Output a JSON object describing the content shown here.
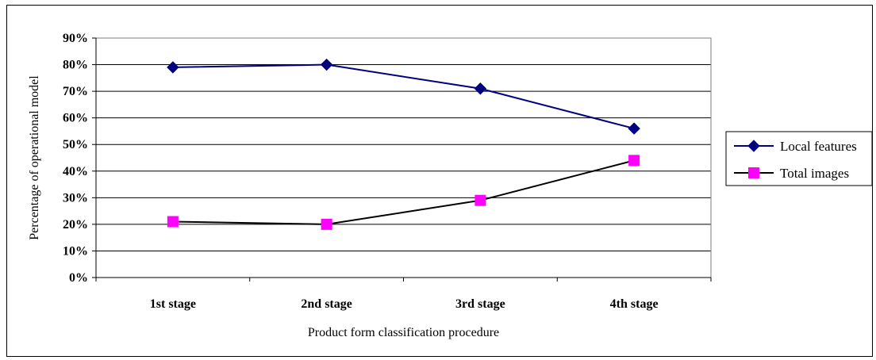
{
  "chart_data": {
    "type": "line",
    "categories": [
      "1st stage",
      "2nd stage",
      "3rd stage",
      "4th stage"
    ],
    "series": [
      {
        "name": "Local features",
        "values": [
          79,
          80,
          71,
          56
        ],
        "color": "#000080",
        "marker": "diamond"
      },
      {
        "name": "Total images",
        "values": [
          21,
          20,
          29,
          44
        ],
        "color": "#000000",
        "marker": "square",
        "marker_color": "#ff00ff"
      }
    ],
    "title": "",
    "xlabel": "Product form classification procedure",
    "ylabel": "Percentage of operational model",
    "ylim": [
      0,
      90
    ],
    "yticks": [
      "0%",
      "10%",
      "20%",
      "30%",
      "40%",
      "50%",
      "60%",
      "70%",
      "80%",
      "90%"
    ],
    "grid": true,
    "legend": "right"
  }
}
